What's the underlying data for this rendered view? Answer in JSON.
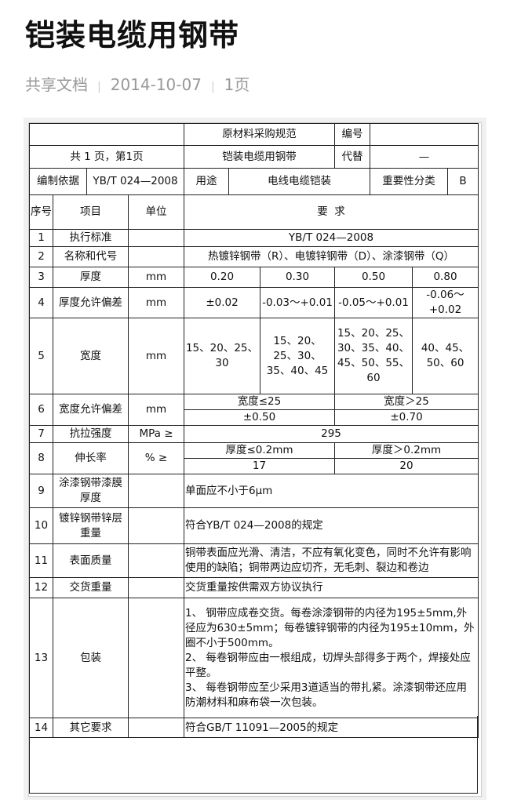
{
  "title": "铠装电缆用钢带",
  "meta": {
    "source": "共享文档",
    "date": "2014-10-07",
    "pages": "1页"
  },
  "header": {
    "doc_type": "原材料采购规范",
    "code_label": "编号",
    "code_value": "",
    "page_info": "共 1 页，第1页",
    "product": "铠装电缆用钢带",
    "replace_label": "代替",
    "replace_value": "—",
    "basis_label": "编制依据",
    "basis_value": "YB/T 024—2008",
    "use_label": "用途",
    "use_value": "电线电缆铠装",
    "importance_label": "重要性分类",
    "importance_value": "B"
  },
  "columns": {
    "seq": "序号",
    "item": "项目",
    "unit": "单位",
    "req": "要  求"
  },
  "rows": [
    {
      "no": "1",
      "item": "执行标准",
      "unit": "",
      "req": "YB/T 024—2008"
    },
    {
      "no": "2",
      "item": "名称和代号",
      "unit": "",
      "req": "热镀锌钢带（R）、电镀锌钢带（D）、涂漆钢带（Q）"
    },
    {
      "no": "3",
      "item": "厚度",
      "unit": "mm",
      "vals": [
        "0.20",
        "0.30",
        "0.50",
        "0.80"
      ]
    },
    {
      "no": "4",
      "item": "厚度允许偏差",
      "unit": "mm",
      "vals": [
        "±0.02",
        "-0.03～+0.01",
        "-0.05～+0.01",
        "-0.06～+0.02"
      ]
    },
    {
      "no": "5",
      "item": "宽度",
      "unit": "mm",
      "vals": [
        "15、20、25、30",
        "15、20、25、30、35、40、45",
        "15、20、25、30、35、40、45、50、55、60",
        "40、45、50、60"
      ]
    },
    {
      "no": "6",
      "item": "宽度允许偏差",
      "unit": "mm",
      "heads": [
        "宽度≤25",
        "宽度＞25"
      ],
      "vals": [
        "±0.50",
        "±0.70"
      ]
    },
    {
      "no": "7",
      "item": "抗拉强度",
      "unit": "MPa   ≥",
      "req": "295"
    },
    {
      "no": "8",
      "item": "伸长率",
      "unit": "%     ≥",
      "heads": [
        "厚度≤0.2mm",
        "厚度＞0.2mm"
      ],
      "vals": [
        "17",
        "20"
      ]
    },
    {
      "no": "9",
      "item": "涂漆钢带漆膜厚度",
      "unit": "",
      "req": "单面应不小于6μm"
    },
    {
      "no": "10",
      "item": "镀锌钢带锌层重量",
      "unit": "",
      "req": "符合YB/T 024—2008的规定"
    },
    {
      "no": "11",
      "item": "表面质量",
      "unit": "",
      "req": "铜带表面应光滑、清洁，不应有氧化变色，同时不允许有影响使用的缺陷；铜带两边应切齐，无毛刺、裂边和卷边"
    },
    {
      "no": "12",
      "item": "交货重量",
      "unit": "",
      "req": "交货重量按供需双方协议执行"
    },
    {
      "no": "13",
      "item": "包装",
      "unit": "",
      "req_lines": [
        "1、 钢带应成卷交货。每卷涂漆钢带的内径为195±5mm,外径应为630±5mm；每卷镀锌钢带的内径为195±10mm，外圈不小于500mm。",
        "2、 每卷钢带应由一根组成，切焊头部得多于两个，焊接处应平整。",
        "3、 每卷钢带应至少采用3道适当的带扎紧。涂漆钢带还应用防潮材料和麻布袋一次包装。"
      ]
    },
    {
      "no": "14",
      "item": "其它要求",
      "unit": "",
      "req": "符合GB/T 11091—2005的规定"
    }
  ]
}
